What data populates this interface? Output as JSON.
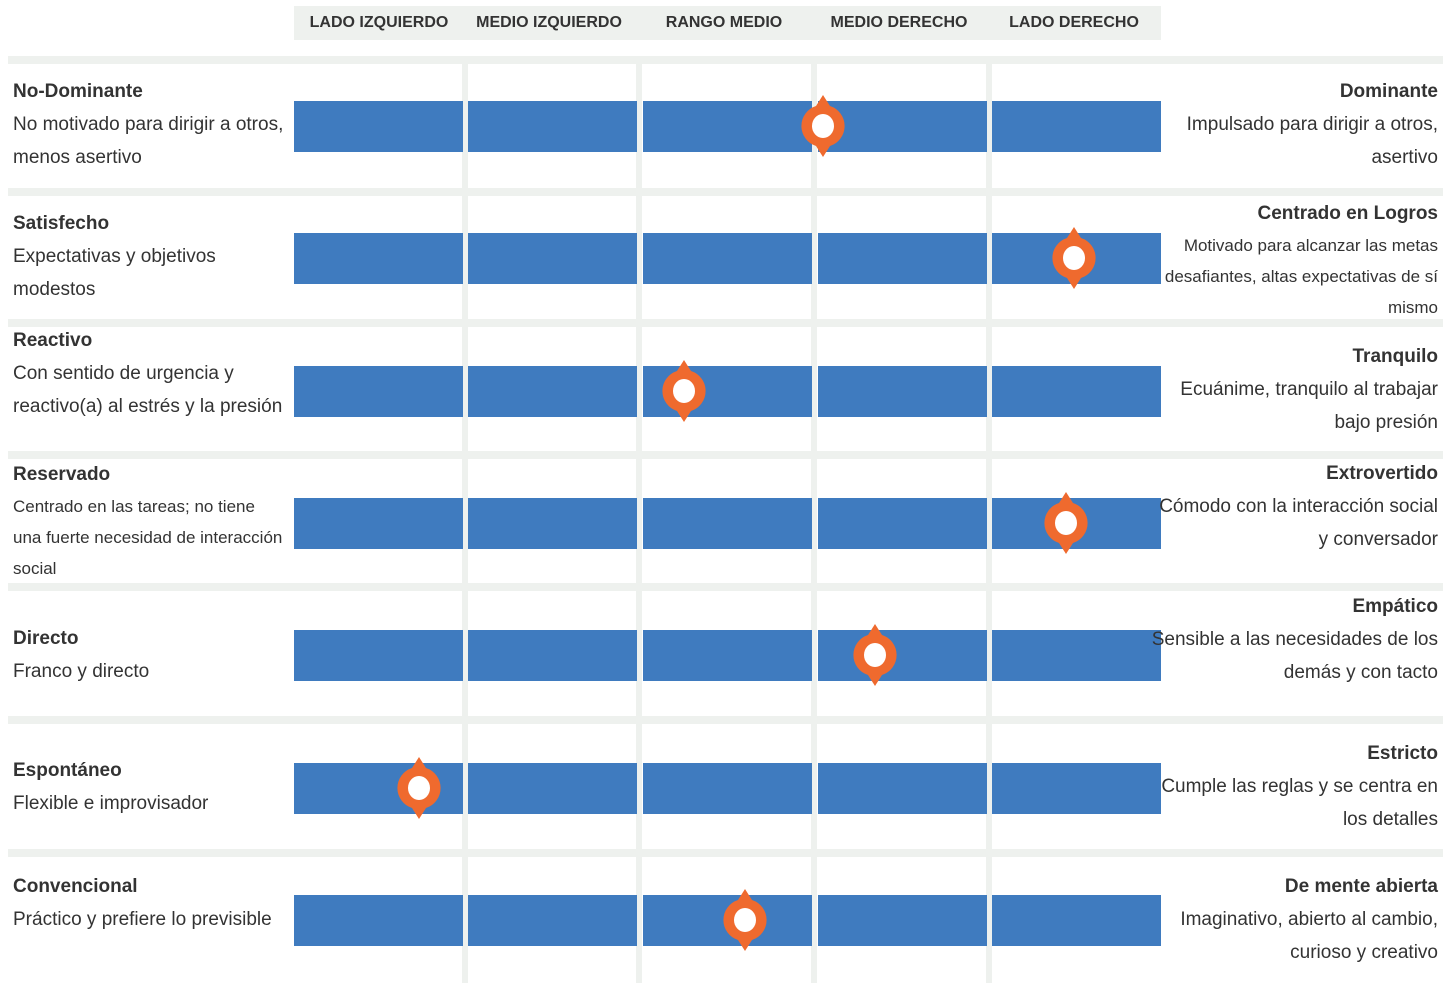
{
  "columns": [
    "LADO IZQUIERDO",
    "MEDIO IZQUIERDO",
    "RANGO MEDIO",
    "MEDIO DERECHO",
    "LADO DERECHO"
  ],
  "colors": {
    "bar": "#3f7bbf",
    "marker": "#ef6a2e",
    "separator": "#eef1ee",
    "header_bg": "#eef1ee"
  },
  "icon": "location-pin-icon",
  "chart_data": {
    "type": "scale",
    "scale": {
      "min": 0,
      "max": 5,
      "categories": [
        "LADO IZQUIERDO",
        "MEDIO IZQUIERDO",
        "RANGO MEDIO",
        "MEDIO DERECHO",
        "LADO DERECHO"
      ]
    },
    "traits": [
      {
        "left_title": "No-Dominante",
        "left_desc": "No motivado para dirigir a otros, menos asertivo",
        "right_title": "Dominante",
        "right_desc": "Impulsado para dirigir a otros, asertivo",
        "value": 3.05
      },
      {
        "left_title": "Satisfecho",
        "left_desc": "Expectativas y objetivos modestos",
        "right_title": "Centrado en Logros",
        "right_desc": "Motivado para alcanzar las metas desafiantes, altas expectativas de sí mismo",
        "value": 4.5
      },
      {
        "left_title": "Reactivo",
        "left_desc": "Con sentido de urgencia y reactivo(a) al estrés y la presión",
        "right_title": "Tranquilo",
        "right_desc": "Ecuánime, tranquilo al trabajar bajo presión",
        "value": 2.25
      },
      {
        "left_title": "Reservado",
        "left_desc": "Centrado en las tareas; no tiene una fuerte necesidad de interacción social",
        "right_title": "Extrovertido",
        "right_desc": "Cómodo con la interacción social y conversador",
        "value": 4.45
      },
      {
        "left_title": "Directo",
        "left_desc": "Franco y directo",
        "right_title": "Empático",
        "right_desc": "Sensible a las necesidades de los demás y con tacto",
        "value": 3.35
      },
      {
        "left_title": "Espontáneo",
        "left_desc": "Flexible e improvisador",
        "right_title": "Estricto",
        "right_desc": "Cumple las reglas y se centra en los detalles",
        "value": 0.72
      },
      {
        "left_title": "Convencional",
        "left_desc": "Práctico y prefiere lo previsible",
        "right_title": "De mente abierta",
        "right_desc": "Imaginativo, abierto al cambio,  curioso y creativo",
        "value": 2.6
      }
    ]
  }
}
